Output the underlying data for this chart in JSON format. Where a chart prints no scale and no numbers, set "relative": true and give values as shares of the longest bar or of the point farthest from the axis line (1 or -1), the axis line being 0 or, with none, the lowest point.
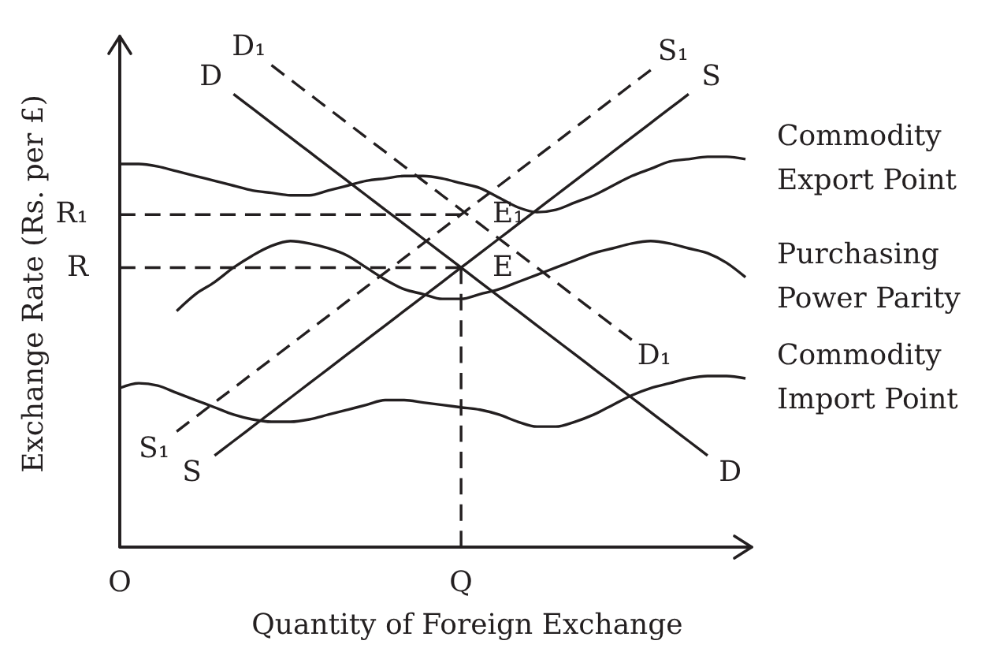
{
  "chart_data": {
    "type": "line",
    "relative": true,
    "xlabel": "Quantity of Foreign Exchange",
    "ylabel": "Exchange Rate (Rs. per £)",
    "tick_labels": "x",
    "marker": "none",
    "line_style": "solid",
    "categories": [
      "O",
      null,
      null,
      null,
      null,
      null,
      null,
      null,
      null,
      null,
      null,
      null,
      null,
      null,
      null,
      null,
      null,
      null,
      "Q",
      null,
      null,
      null,
      null,
      null,
      null,
      null,
      null,
      null,
      null,
      null,
      null,
      null,
      null,
      null
    ],
    "series": [
      {
        "name": "Commodity Export Point",
        "color": "#231f20",
        "values": [
          0.795,
          0.795,
          0.79,
          0.78,
          0.77,
          0.76,
          0.75,
          0.74,
          0.735,
          0.73,
          0.73,
          0.74,
          0.75,
          0.76,
          0.765,
          0.77,
          0.77,
          0.765,
          0.755,
          0.745,
          0.725,
          0.705,
          0.695,
          0.7,
          0.715,
          0.73,
          0.75,
          0.77,
          0.785,
          0.8,
          0.805,
          0.81,
          0.81,
          0.805
        ]
      },
      {
        "name": "Purchasing Power Parity",
        "color": "#231f20",
        "values": [
          null,
          null,
          null,
          0.49,
          0.525,
          0.55,
          0.58,
          0.605,
          0.625,
          0.635,
          0.63,
          0.62,
          0.605,
          0.58,
          0.555,
          0.535,
          0.525,
          0.515,
          0.515,
          0.525,
          0.535,
          0.55,
          0.565,
          0.58,
          0.595,
          0.61,
          0.62,
          0.63,
          0.635,
          0.63,
          0.62,
          0.61,
          0.59,
          0.56
        ]
      },
      {
        "name": "Commodity Import Point",
        "color": "#231f20",
        "values": [
          0.33,
          0.34,
          0.335,
          0.32,
          0.305,
          0.29,
          0.275,
          0.265,
          0.26,
          0.26,
          0.265,
          0.275,
          0.285,
          0.295,
          0.305,
          0.305,
          0.3,
          0.295,
          0.29,
          0.285,
          0.275,
          0.26,
          0.25,
          0.25,
          0.26,
          0.275,
          0.295,
          0.315,
          0.33,
          0.34,
          0.35,
          0.355,
          0.355,
          0.35
        ]
      },
      {
        "name": "D",
        "color": "#231f20",
        "values": [
          null,
          null,
          null,
          null,
          null,
          null,
          0.94,
          0.91,
          0.88,
          0.85,
          0.82,
          0.79,
          0.76,
          0.73,
          0.7,
          0.67,
          0.64,
          0.61,
          0.58,
          0.55,
          0.52,
          0.49,
          0.46,
          0.43,
          0.4,
          0.37,
          0.34,
          0.31,
          0.28,
          0.25,
          0.22,
          0.19,
          null,
          null
        ]
      },
      {
        "name": "D₁",
        "color": "#231f20",
        "line_style": "dashed",
        "values": [
          null,
          null,
          null,
          null,
          null,
          null,
          null,
          null,
          1.0,
          0.97,
          0.94,
          0.91,
          0.88,
          0.85,
          0.82,
          0.79,
          0.76,
          0.73,
          0.7,
          0.67,
          0.64,
          0.61,
          0.58,
          0.55,
          0.52,
          0.49,
          0.46,
          0.43,
          null,
          null,
          null,
          null,
          null,
          null
        ]
      },
      {
        "name": "S",
        "color": "#231f20",
        "values": [
          null,
          null,
          null,
          null,
          null,
          0.19,
          0.22,
          0.25,
          0.28,
          0.31,
          0.34,
          0.37,
          0.4,
          0.43,
          0.46,
          0.49,
          0.52,
          0.55,
          0.58,
          0.61,
          0.64,
          0.67,
          0.7,
          0.73,
          0.76,
          0.79,
          0.82,
          0.85,
          0.88,
          0.91,
          0.94,
          null,
          null,
          null
        ]
      },
      {
        "name": "S₁",
        "color": "#231f20",
        "line_style": "dashed",
        "values": [
          null,
          null,
          null,
          0.24,
          0.27,
          0.3,
          0.33,
          0.36,
          0.39,
          0.42,
          0.45,
          0.48,
          0.51,
          0.54,
          0.57,
          0.6,
          0.63,
          0.66,
          0.69,
          0.72,
          0.75,
          0.78,
          0.81,
          0.84,
          0.87,
          0.9,
          0.93,
          0.96,
          0.99,
          null,
          null,
          null,
          null,
          null
        ]
      },
      {
        "color": "#231f20",
        "line_style": "dashed",
        "values": [
          0.69,
          0.69,
          0.69,
          0.69,
          0.69,
          0.69,
          0.69,
          0.69,
          0.69,
          0.69,
          0.69,
          0.69,
          0.69,
          0.69,
          0.69,
          0.69,
          0.69,
          0.69,
          0.69,
          null,
          null,
          null,
          null,
          null,
          null,
          null,
          null,
          null,
          null,
          null,
          null,
          null,
          null,
          null
        ]
      },
      {
        "color": "#231f20",
        "line_style": "dashed",
        "values": [
          0.58,
          0.58,
          0.58,
          0.58,
          0.58,
          0.58,
          0.58,
          0.58,
          0.58,
          0.58,
          0.58,
          0.58,
          0.58,
          0.58,
          0.58,
          0.58,
          0.58,
          0.58,
          0.58,
          null,
          null,
          null,
          null,
          null,
          null,
          null,
          null,
          null,
          null,
          null,
          null,
          null,
          null,
          null
        ]
      },
      {
        "color": "#231f20",
        "line_style": "dashed",
        "x": [
          "Q",
          "Q"
        ],
        "values": [
          0.58,
          0
        ]
      }
    ],
    "annotations": [
      {
        "text": "R₁",
        "x": "O",
        "y": 0.69
      },
      {
        "text": "R",
        "x": "O",
        "y": 0.58
      },
      {
        "text": "E₁",
        "x": "Q",
        "y": 0.69
      },
      {
        "text": "E",
        "x": "Q",
        "y": 0.58
      }
    ]
  }
}
